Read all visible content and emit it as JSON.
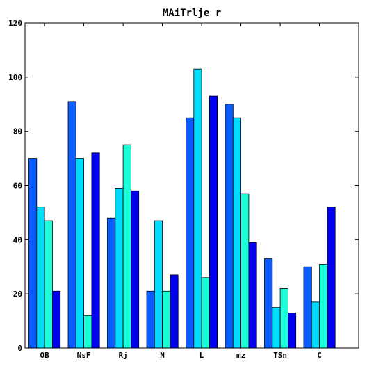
{
  "chart_data": {
    "type": "bar",
    "title": "MAiTrlje r",
    "xlabel": "",
    "ylabel": "",
    "categories": [
      "OB",
      "NsF",
      "Rj",
      "N",
      "L",
      "mz",
      "TSn",
      "C"
    ],
    "series": [
      {
        "values": [
          70,
          91,
          48,
          21,
          85,
          90,
          33,
          30
        ],
        "color": "#0a5cff"
      },
      {
        "values": [
          52,
          70,
          59,
          47,
          103,
          85,
          15,
          17
        ],
        "color": "#00dcff"
      },
      {
        "values": [
          47,
          12,
          75,
          21,
          26,
          57,
          22,
          31
        ],
        "color": "#1affd8"
      },
      {
        "values": [
          21,
          72,
          58,
          27,
          93,
          39,
          13,
          52
        ],
        "color": "#0000f0"
      }
    ],
    "ylim": [
      0,
      120
    ],
    "yticks": [
      "0",
      "20",
      "40",
      "60",
      "80",
      "100",
      "120"
    ],
    "grid": false,
    "legend": "none"
  }
}
